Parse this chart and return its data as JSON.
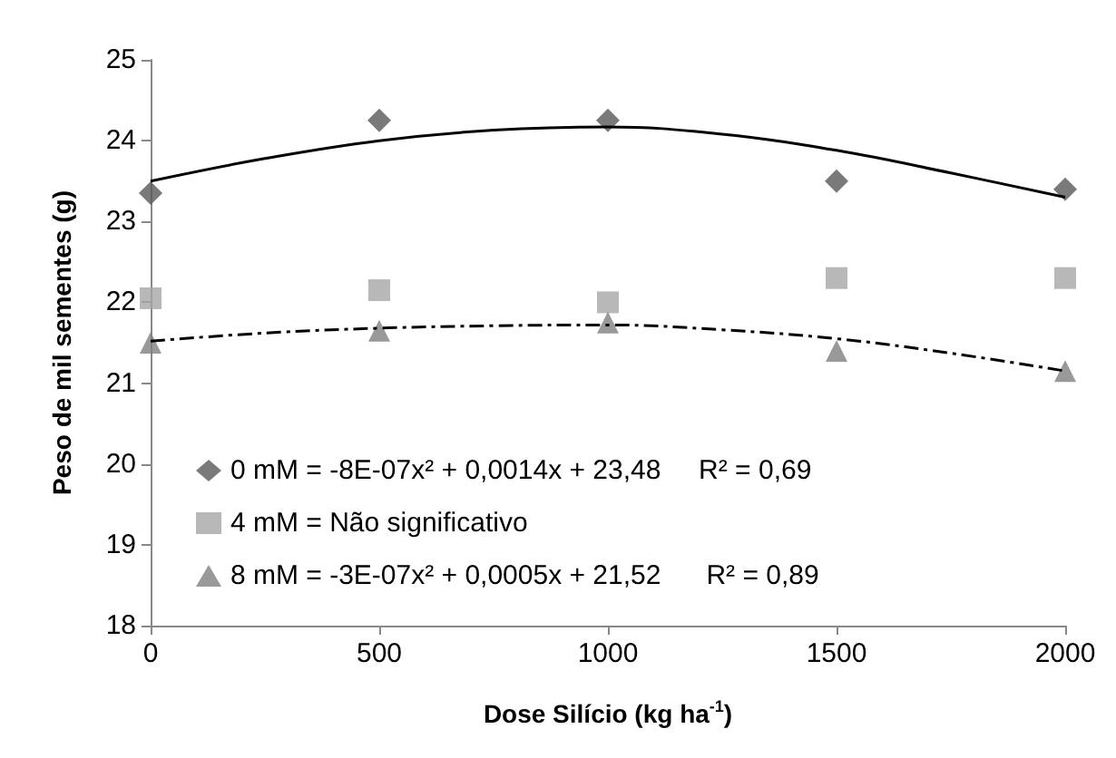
{
  "chart_data": {
    "type": "scatter",
    "xlabel": "Dose Silício (kg ha$^{-1}$)",
    "ylabel": "Peso de mil sementes (g)",
    "x": [
      0,
      500,
      1000,
      1500,
      2000
    ],
    "series": [
      {
        "name": "0 mM = -8E-07x² + 0,0014x + 23,48     R² = 0,69",
        "color": "#595959",
        "marker": "diamond",
        "values": [
          23.35,
          24.25,
          24.25,
          23.5,
          23.4
        ]
      },
      {
        "name": "4 mM = Não significativo",
        "color": "#a6a6a6",
        "marker": "square",
        "values": [
          22.05,
          22.15,
          22.0,
          22.3,
          22.3
        ]
      },
      {
        "name": "8 mM = -3E-07x² + 0,0005x + 21,52      R² = 0,89",
        "color": "#7f7f7f",
        "marker": "triangle",
        "values": [
          21.5,
          21.65,
          21.75,
          21.4,
          21.15
        ]
      },
      {
        "type": "line",
        "color": "#000000",
        "line_style": "solid",
        "marker": "none",
        "x": [
          0,
          250,
          500,
          750,
          1000,
          1250,
          1500,
          1750,
          2000
        ],
        "values": [
          23.5,
          23.78,
          24.0,
          24.13,
          24.17,
          24.08,
          23.88,
          23.6,
          23.3
        ]
      },
      {
        "type": "line",
        "color": "#000000",
        "line_style": "dashed",
        "marker": "none",
        "x": [
          0,
          250,
          500,
          750,
          1000,
          1250,
          1500,
          1750,
          2000
        ],
        "values": [
          21.52,
          21.62,
          21.68,
          21.71,
          21.72,
          21.66,
          21.55,
          21.37,
          21.15
        ]
      }
    ],
    "xlim": [
      0,
      2000
    ],
    "xticks": [
      0,
      500,
      1000,
      1500,
      2000
    ],
    "ylim": [
      18,
      25
    ],
    "yticks": [
      18,
      19,
      20,
      21,
      22,
      23,
      24,
      25
    ],
    "grid": false,
    "legend": "bottom left"
  }
}
